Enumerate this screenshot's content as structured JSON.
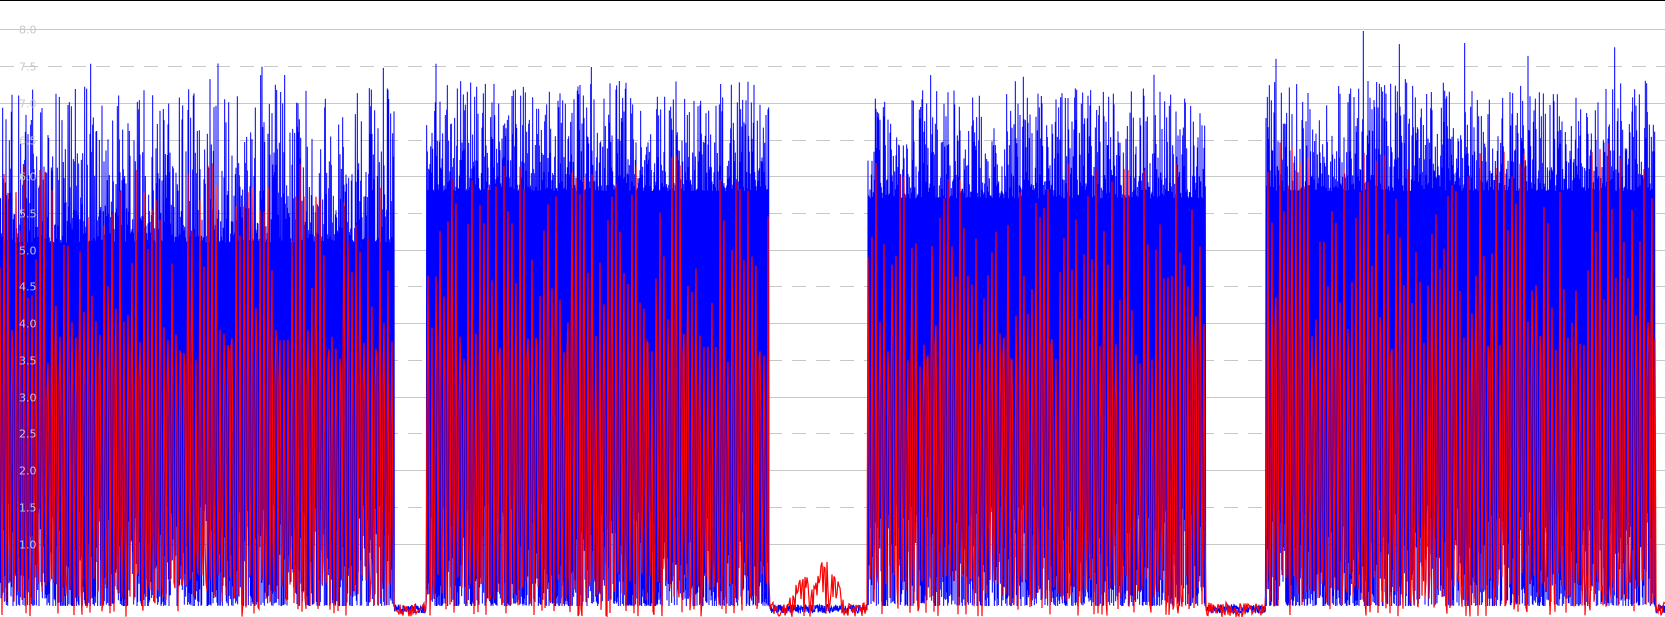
{
  "chart_data": {
    "type": "line",
    "title": "",
    "xlabel": "",
    "ylabel": "",
    "ylim": [
      0.0,
      8.4
    ],
    "grid": true,
    "legend": "none",
    "y_ticks": [
      "1.0",
      "1.5",
      "2.0",
      "2.5",
      "3.0",
      "3.5",
      "4.0",
      "4.5",
      "5.0",
      "5.5",
      "6.0",
      "6.5",
      "7.0",
      "7.5",
      "8.0"
    ],
    "series": [
      {
        "color": "#0000ff",
        "segments": [
          {
            "start": 0.0,
            "end": 0.237,
            "low": 0.15,
            "base": 5.1,
            "peak_max": 7.6,
            "peak_mean": 6.8
          },
          {
            "start": 0.256,
            "end": 0.462,
            "low": 0.15,
            "base": 5.8,
            "peak_max": 7.9,
            "peak_mean": 7.0
          },
          {
            "start": 0.521,
            "end": 0.724,
            "low": 0.15,
            "base": 5.7,
            "peak_max": 7.4,
            "peak_mean": 6.9
          },
          {
            "start": 0.76,
            "end": 0.994,
            "low": 0.15,
            "base": 5.8,
            "peak_max": 8.2,
            "peak_mean": 7.0
          }
        ],
        "idle_level": 0.05
      },
      {
        "color": "#ff0000",
        "segments": [
          {
            "start": 0.0,
            "end": 0.237,
            "low": 0.0,
            "high": 6.2
          },
          {
            "start": 0.256,
            "end": 0.462,
            "low": 0.0,
            "high": 6.3
          },
          {
            "start": 0.521,
            "end": 0.724,
            "low": 0.0,
            "high": 6.2
          },
          {
            "start": 0.76,
            "end": 0.994,
            "low": 0.0,
            "high": 6.6
          }
        ],
        "idle_bursts": [
          {
            "start": 0.467,
            "end": 0.516,
            "high": 1.0
          }
        ]
      }
    ],
    "colors": {
      "primary": "#0000ff",
      "secondary": "#ff0000",
      "grid": "#c8c8c8",
      "background": "#ffffff"
    }
  }
}
